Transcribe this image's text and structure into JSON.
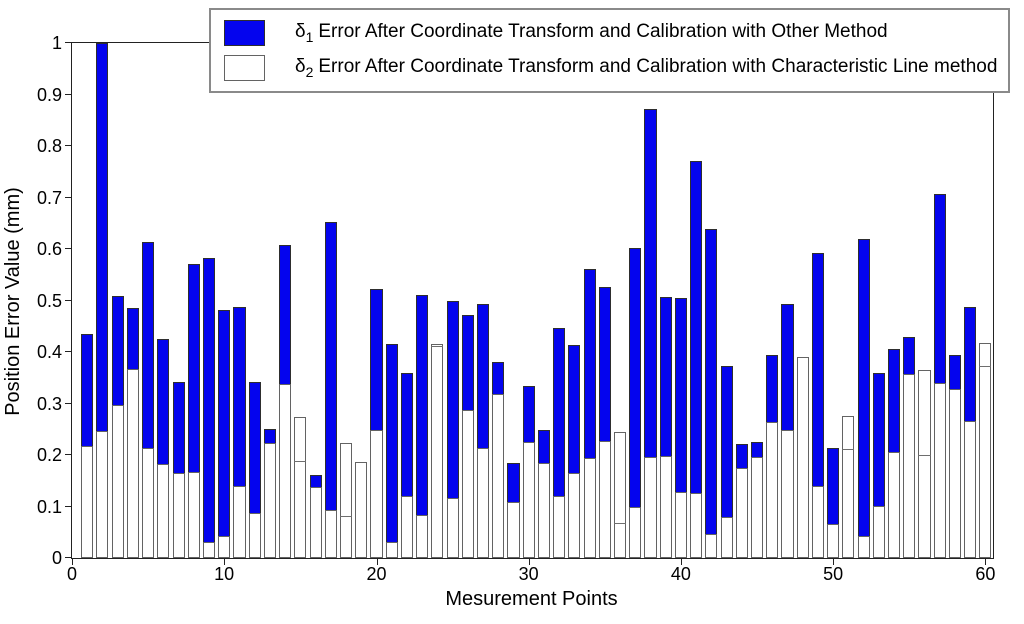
{
  "colors": {
    "series1_fill": "#0404ee",
    "series1_edge": "#2e2e2e",
    "series2_fill": "#ffffff",
    "series2_edge": "#636363",
    "axis": "#222222",
    "background": "#ffffff"
  },
  "legend": {
    "items": [
      {
        "symbol": "δ",
        "sub": "1",
        "label": "Error After Coordinate Transform and Calibration with Other Method",
        "swatch": "blue"
      },
      {
        "symbol": "δ",
        "sub": "2",
        "label": "Error After Coordinate Transform and Calibration with Characteristic Line method",
        "swatch": "white"
      }
    ]
  },
  "chart_data": {
    "type": "bar",
    "title": "",
    "xlabel": "Mesurement Points",
    "ylabel": "Position Error Value (mm)",
    "xlim": [
      0,
      60.5
    ],
    "ylim": [
      0,
      1
    ],
    "grid": false,
    "legend_position": "top",
    "bar_style": "overlaid (series 2 drawn in front of series 1)",
    "x_ticks": [
      0,
      10,
      20,
      30,
      40,
      50,
      60
    ],
    "y_ticks": [
      "0",
      "0.1",
      "0.2",
      "0.3",
      "0.4",
      "0.5",
      "0.6",
      "0.7",
      "0.8",
      "0.9",
      "1"
    ],
    "y_tick_values": [
      0,
      0.1,
      0.2,
      0.3,
      0.4,
      0.5,
      0.6,
      0.7,
      0.8,
      0.9,
      1
    ],
    "x": [
      1,
      2,
      3,
      4,
      5,
      6,
      7,
      8,
      9,
      10,
      11,
      12,
      13,
      14,
      15,
      16,
      17,
      18,
      19,
      20,
      21,
      22,
      23,
      24,
      25,
      26,
      27,
      28,
      29,
      30,
      31,
      32,
      33,
      34,
      35,
      36,
      37,
      38,
      39,
      40,
      41,
      42,
      43,
      44,
      45,
      46,
      47,
      48,
      49,
      50,
      51,
      52,
      53,
      54,
      55,
      56,
      57,
      58,
      59,
      60
    ],
    "series": [
      {
        "name": "δ1 Error After Coordinate Transform and Calibration with Other Method",
        "color": "#0404ee",
        "values": [
          0.435,
          1.0,
          0.508,
          0.486,
          0.613,
          0.425,
          0.342,
          0.571,
          0.583,
          0.482,
          0.488,
          0.341,
          0.25,
          0.607,
          0.186,
          0.162,
          0.653,
          0.08,
          0.187,
          0.522,
          0.416,
          0.36,
          0.51,
          0.41,
          0.5,
          0.471,
          0.494,
          0.38,
          0.185,
          0.335,
          0.248,
          0.446,
          0.414,
          0.562,
          0.527,
          0.067,
          0.603,
          0.872,
          0.507,
          0.504,
          0.771,
          0.638,
          0.373,
          0.222,
          0.226,
          0.394,
          0.493,
          0.391,
          0.593,
          0.214,
          0.209,
          0.619,
          0.36,
          0.406,
          0.43,
          0.198,
          0.707,
          0.394,
          0.487,
          0.371
        ]
      },
      {
        "name": "δ2 Error After Coordinate Transform and Calibration with Characteristic Line method",
        "color": "#ffffff",
        "values": [
          0.217,
          0.246,
          0.298,
          0.367,
          0.213,
          0.182,
          0.166,
          0.168,
          0.031,
          0.043,
          0.139,
          0.087,
          0.224,
          0.337,
          0.274,
          0.137,
          0.093,
          0.224,
          0.187,
          0.248,
          0.031,
          0.12,
          0.083,
          0.416,
          0.117,
          0.287,
          0.213,
          0.319,
          0.109,
          0.226,
          0.185,
          0.12,
          0.165,
          0.194,
          0.227,
          0.245,
          0.099,
          0.197,
          0.198,
          0.129,
          0.126,
          0.047,
          0.08,
          0.175,
          0.196,
          0.265,
          0.248,
          0.391,
          0.139,
          0.067,
          0.276,
          0.043,
          0.102,
          0.206,
          0.358,
          0.365,
          0.34,
          0.328,
          0.266,
          0.417
        ]
      }
    ]
  }
}
